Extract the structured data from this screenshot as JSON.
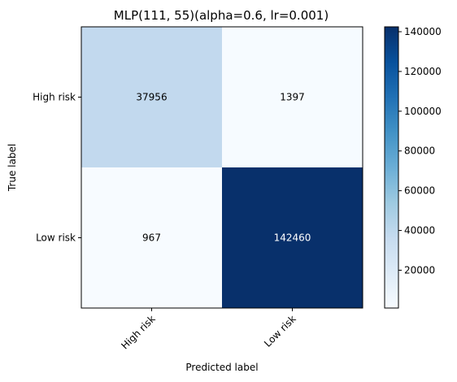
{
  "chart_data": {
    "type": "heatmap",
    "title": "MLP(111, 55)(alpha=0.6, lr=0.001)",
    "xlabel": "Predicted label",
    "ylabel": "True label",
    "x_categories": [
      "High risk",
      "Low risk"
    ],
    "y_categories": [
      "High risk",
      "Low risk"
    ],
    "values": [
      [
        37956,
        1397
      ],
      [
        967,
        142460
      ]
    ],
    "colormap": "Blues",
    "colorbar": {
      "min": 967,
      "max": 142460,
      "ticks": [
        20000,
        40000,
        60000,
        80000,
        100000,
        120000,
        140000
      ]
    },
    "grid": false
  }
}
